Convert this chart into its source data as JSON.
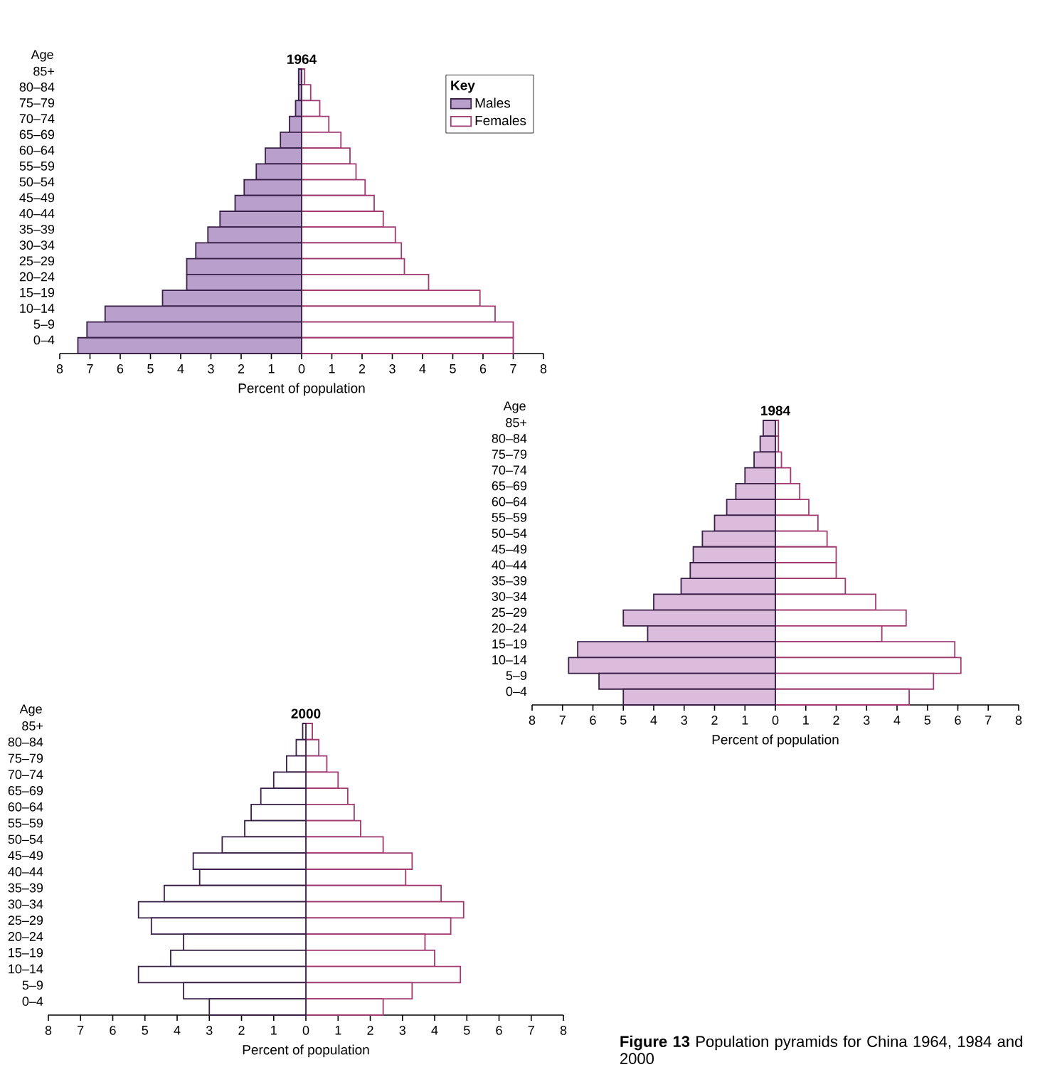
{
  "chart_data": [
    {
      "type": "bar",
      "orientation": "horizontal",
      "stacked": true,
      "title": "1964",
      "xlabel": "Percent of population",
      "ylabel": "Age",
      "legend_title": "Key",
      "legend": "top right",
      "categories": [
        "85+",
        "80–84",
        "75–79",
        "70–74",
        "65–69",
        "60–64",
        "55–59",
        "50–54",
        "45–49",
        "40–44",
        "35–39",
        "30–34",
        "25–29",
        "20–24",
        "15–19",
        "10–14",
        "5–9",
        "0–4"
      ],
      "xlim": [
        -8,
        8
      ],
      "xticks": [
        {
          "value": -8,
          "label": "8"
        },
        {
          "value": -7,
          "label": "7"
        },
        {
          "value": -6,
          "label": "6"
        },
        {
          "value": -5,
          "label": "5"
        },
        {
          "value": -4,
          "label": "4"
        },
        {
          "value": -3,
          "label": "3"
        },
        {
          "value": -2,
          "label": "2"
        },
        {
          "value": -1,
          "label": "1"
        },
        0,
        1,
        2,
        3,
        4,
        5,
        6,
        7,
        8
      ],
      "series": [
        {
          "name": "Males",
          "color": "#b9a0cc",
          "values": [
            -0.1,
            -0.1,
            -0.2,
            -0.4,
            -0.7,
            -1.2,
            -1.5,
            -1.9,
            -2.2,
            -2.7,
            -3.1,
            -3.5,
            -3.8,
            -3.8,
            -4.6,
            -6.5,
            -7.1,
            -7.4
          ]
        },
        {
          "name": "Females",
          "color": "#ffffff",
          "values": [
            0.1,
            0.3,
            0.6,
            0.9,
            1.3,
            1.6,
            1.8,
            2.1,
            2.4,
            2.7,
            3.1,
            3.3,
            3.4,
            4.2,
            5.9,
            6.4,
            7.0,
            7.0
          ]
        }
      ]
    },
    {
      "type": "bar",
      "orientation": "horizontal",
      "stacked": true,
      "title": "1984",
      "xlabel": "Percent of population",
      "ylabel": "Age",
      "categories": [
        "85+",
        "80–84",
        "75–79",
        "70–74",
        "65–69",
        "60–64",
        "55–59",
        "50–54",
        "45–49",
        "40–44",
        "35–39",
        "30–34",
        "25–29",
        "20–24",
        "15–19",
        "10–14",
        "5–9",
        "0–4"
      ],
      "xlim": [
        -8,
        8
      ],
      "xticks": [
        {
          "value": -8,
          "label": "8"
        },
        {
          "value": -7,
          "label": "7"
        },
        {
          "value": -6,
          "label": "6"
        },
        {
          "value": -5,
          "label": "5"
        },
        {
          "value": -4,
          "label": "4"
        },
        {
          "value": -3,
          "label": "3"
        },
        {
          "value": -2,
          "label": "2"
        },
        {
          "value": -1,
          "label": "1"
        },
        0,
        1,
        2,
        3,
        4,
        5,
        6,
        7,
        8
      ],
      "series": [
        {
          "color": "#dcbcdc",
          "values": [
            -0.4,
            -0.5,
            -0.7,
            -1.0,
            -1.3,
            -1.6,
            -2.0,
            -2.4,
            -2.7,
            -2.8,
            -3.1,
            -4.0,
            -5.0,
            -4.2,
            -6.5,
            -6.8,
            -5.8,
            -5.0
          ]
        },
        {
          "color": "#ffffff",
          "values": [
            0.1,
            0.1,
            0.2,
            0.5,
            0.8,
            1.1,
            1.4,
            1.7,
            2.0,
            2.0,
            2.3,
            3.3,
            4.3,
            3.5,
            5.9,
            6.1,
            5.2,
            4.4
          ]
        }
      ]
    },
    {
      "type": "bar",
      "orientation": "horizontal",
      "stacked": true,
      "title": "2000",
      "xlabel": "Percent of population",
      "ylabel": "Age",
      "annotations": [
        "**Figure 13** Population pyramids for China 1964, 1984 and 2000"
      ],
      "categories": [
        "85+",
        "80–84",
        "75–79",
        "70–74",
        "65–69",
        "60–64",
        "55–59",
        "50–54",
        "45–49",
        "40–44",
        "35–39",
        "30–34",
        "25–29",
        "20–24",
        "15–19",
        "10–14",
        "5–9",
        "0–4"
      ],
      "xlim": [
        -8,
        8
      ],
      "xticks": [
        {
          "value": -8,
          "label": "8"
        },
        {
          "value": -7,
          "label": "7"
        },
        {
          "value": -6,
          "label": "6"
        },
        {
          "value": -5,
          "label": "5"
        },
        {
          "value": -4,
          "label": "4"
        },
        {
          "value": -3,
          "label": "3"
        },
        {
          "value": -2,
          "label": "2"
        },
        {
          "value": -1,
          "label": "1"
        },
        0,
        1,
        2,
        3,
        4,
        5,
        6,
        7,
        8
      ],
      "series": [
        {
          "color": "#ffffff",
          "values": [
            -0.1,
            -0.3,
            -0.6,
            -1.0,
            -1.4,
            -1.7,
            -1.9,
            -2.6,
            -3.5,
            -3.3,
            -4.4,
            -5.2,
            -4.8,
            -3.8,
            -4.2,
            -5.2,
            -3.8,
            -3.0
          ]
        },
        {
          "color": "#ffffff",
          "values": [
            0.2,
            0.4,
            0.65,
            1.0,
            1.3,
            1.5,
            1.7,
            2.4,
            3.3,
            3.1,
            4.2,
            4.9,
            4.5,
            3.7,
            4.0,
            4.8,
            3.3,
            2.4
          ]
        }
      ]
    }
  ]
}
